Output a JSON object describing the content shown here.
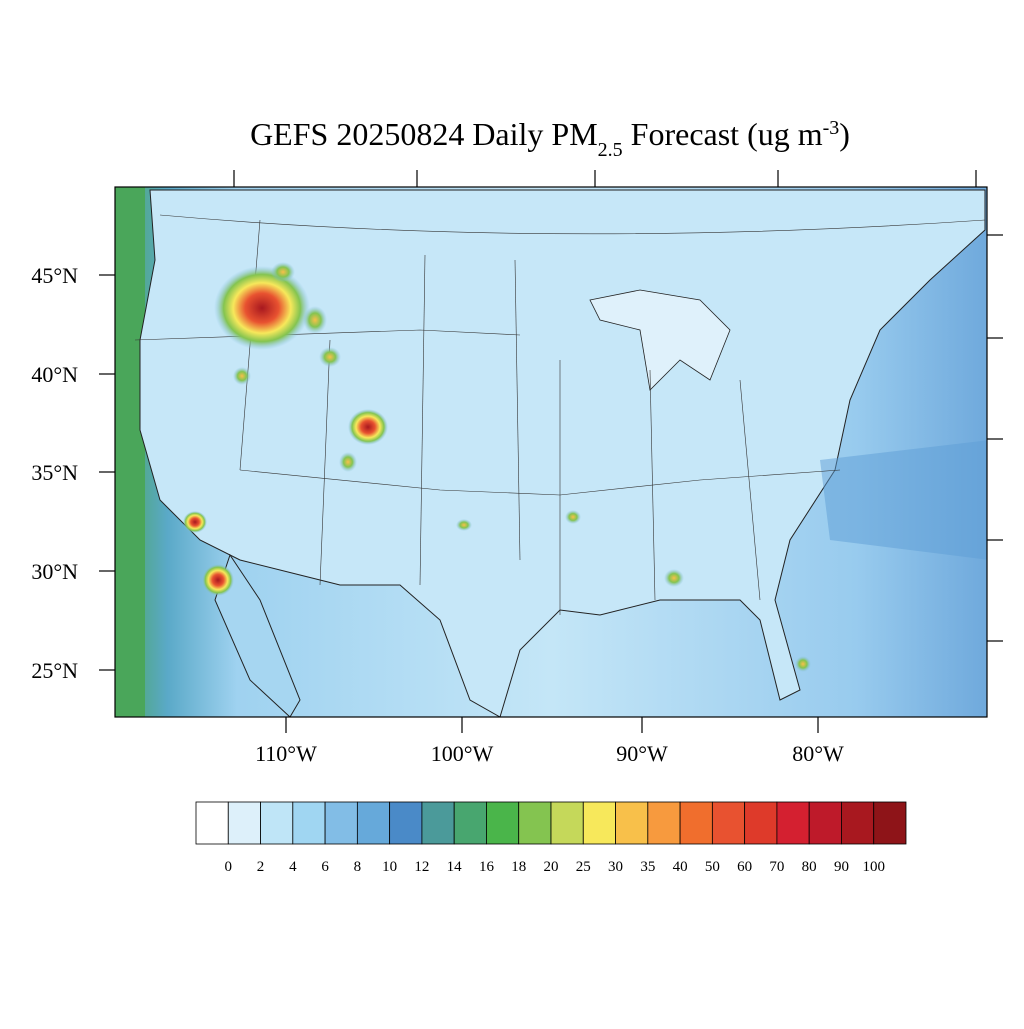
{
  "title": {
    "main": "GEFS 20250824 Daily PM",
    "subscript": "2.5",
    "middle": " Forecast (ug m",
    "superscript": "-3",
    "end": ")"
  },
  "map": {
    "lat_labels": [
      "45°N",
      "40°N",
      "35°N",
      "30°N",
      "25°N"
    ],
    "lon_labels": [
      "110°W",
      "100°W",
      "90°W",
      "80°W"
    ]
  },
  "colorbar": {
    "levels": [
      0,
      2,
      4,
      6,
      8,
      10,
      12,
      14,
      16,
      18,
      20,
      25,
      30,
      35,
      40,
      50,
      60,
      70,
      80,
      90,
      100
    ],
    "colors": [
      "#ffffff",
      "#ddf0fa",
      "#bfe5f7",
      "#a0d6f2",
      "#82bde6",
      "#66a9da",
      "#4a8ac8",
      "#4b9a9a",
      "#48a66f",
      "#4ab54a",
      "#84c450",
      "#c5d85a",
      "#f7e85b",
      "#f8c04a",
      "#f79a3e",
      "#f06e2d",
      "#e85230",
      "#de3a2a",
      "#d42030",
      "#be1a2a",
      "#a8181f",
      "#8e1418"
    ]
  }
}
